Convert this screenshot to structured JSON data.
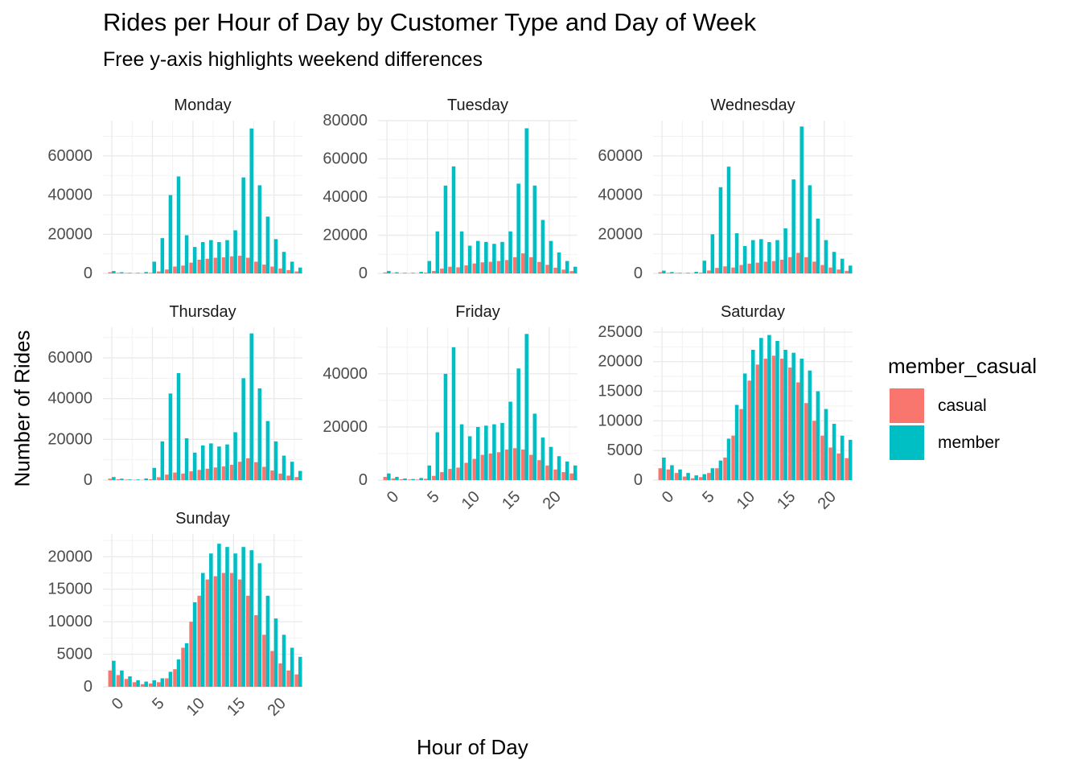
{
  "title": "Rides per Hour of Day by Customer Type and Day of Week",
  "subtitle": "Free y-axis highlights weekend differences",
  "legend": {
    "title": "member_casual",
    "items": [
      {
        "label": "casual",
        "color": "#F8766D"
      },
      {
        "label": "member",
        "color": "#00BFC4"
      }
    ]
  },
  "chart_data": {
    "type": "bar",
    "layout": "faceted grouped bar (dodged), free y-axis per facet",
    "xlabel": "Hour of Day",
    "ylabel": "Number of Rides",
    "x": [
      0,
      1,
      2,
      3,
      4,
      5,
      6,
      7,
      8,
      9,
      10,
      11,
      12,
      13,
      14,
      15,
      16,
      17,
      18,
      19,
      20,
      21,
      22,
      23
    ],
    "x_ticks": [
      0,
      5,
      10,
      15,
      20
    ],
    "grid": true,
    "legend_position": "right",
    "series_names": [
      "casual",
      "member"
    ],
    "facets": [
      {
        "name": "Monday",
        "ylim": [
          0,
          78000
        ],
        "y_ticks": [
          0,
          20000,
          40000,
          60000
        ],
        "series": [
          {
            "name": "casual",
            "values": [
              600,
              300,
              200,
              100,
              100,
              300,
              1000,
              2000,
              3500,
              4000,
              5500,
              7000,
              7500,
              8000,
              8200,
              8700,
              9000,
              8000,
              6000,
              4500,
              3500,
              2500,
              1700,
              1000
            ]
          },
          {
            "name": "member",
            "values": [
              1200,
              600,
              300,
              300,
              700,
              6000,
              18000,
              40000,
              49500,
              19500,
              13500,
              16000,
              17000,
              16000,
              17000,
              22000,
              49000,
              74000,
              45000,
              29000,
              17500,
              11000,
              6000,
              3000
            ]
          }
        ]
      },
      {
        "name": "Tuesday",
        "ylim": [
          0,
          80000
        ],
        "y_ticks": [
          0,
          20000,
          40000,
          60000,
          80000
        ],
        "series": [
          {
            "name": "casual",
            "values": [
              500,
              200,
              100,
              100,
              100,
              400,
              1300,
              2500,
              3500,
              3200,
              4200,
              5200,
              5800,
              6100,
              6500,
              7000,
              8500,
              10500,
              8500,
              6000,
              4500,
              3000,
              2000,
              1200
            ]
          },
          {
            "name": "member",
            "values": [
              1300,
              600,
              300,
              300,
              800,
              6500,
              22000,
              46000,
              56000,
              22000,
              14500,
              17000,
              16500,
              15500,
              16500,
              22000,
              47000,
              76000,
              46000,
              28000,
              17000,
              11000,
              6500,
              3500
            ]
          }
        ]
      },
      {
        "name": "Wednesday",
        "ylim": [
          0,
          78000
        ],
        "y_ticks": [
          0,
          20000,
          40000,
          60000
        ],
        "series": [
          {
            "name": "casual",
            "values": [
              600,
              300,
              200,
              100,
              100,
              400,
              1500,
              2800,
              3600,
              3000,
              4300,
              5000,
              5500,
              6000,
              6300,
              7000,
              8300,
              10500,
              8300,
              6000,
              4300,
              3000,
              2000,
              1300
            ]
          },
          {
            "name": "member",
            "values": [
              1400,
              700,
              300,
              300,
              800,
              6500,
              20000,
              44000,
              54500,
              20500,
              14000,
              17000,
              17500,
              16000,
              17000,
              23000,
              48000,
              75000,
              45000,
              28000,
              17000,
              11000,
              7500,
              4000
            ]
          }
        ]
      },
      {
        "name": "Thursday",
        "ylim": [
          0,
          75000
        ],
        "y_ticks": [
          0,
          20000,
          40000,
          60000
        ],
        "series": [
          {
            "name": "casual",
            "values": [
              700,
              400,
              200,
              100,
              100,
              400,
              1400,
              2700,
              3700,
              3200,
              4300,
              5000,
              5600,
              6200,
              6700,
              7500,
              9000,
              10700,
              8800,
              6500,
              4700,
              3200,
              2200,
              1500
            ]
          },
          {
            "name": "member",
            "values": [
              1500,
              700,
              300,
              300,
              800,
              6000,
              19000,
              42500,
              52500,
              20500,
              13500,
              17000,
              18000,
              16500,
              17500,
              23500,
              50000,
              72000,
              45000,
              29000,
              19000,
              12000,
              9000,
              4500
            ]
          }
        ]
      },
      {
        "name": "Friday",
        "ylim": [
          0,
          57500
        ],
        "y_ticks": [
          0,
          20000,
          40000
        ],
        "series": [
          {
            "name": "casual",
            "values": [
              1200,
              600,
              300,
              200,
              200,
              500,
              1600,
              3000,
              4200,
              4700,
              6500,
              8000,
              9500,
              10000,
              10500,
              11500,
              12000,
              11500,
              9500,
              7500,
              5500,
              4000,
              3000,
              2500
            ]
          },
          {
            "name": "member",
            "values": [
              2500,
              1200,
              600,
              400,
              800,
              5500,
              18000,
              40000,
              50000,
              21000,
              16500,
              20000,
              20500,
              21000,
              21500,
              29500,
              42000,
              55000,
              25000,
              16000,
              12500,
              9000,
              7000,
              5500
            ]
          }
        ]
      },
      {
        "name": "Saturday",
        "ylim": [
          0,
          25800
        ],
        "y_ticks": [
          0,
          5000,
          10000,
          15000,
          20000,
          25000
        ],
        "series": [
          {
            "name": "casual",
            "values": [
              2000,
              1800,
              1200,
              600,
              300,
              500,
              1200,
              2000,
              3800,
              7500,
              12000,
              16800,
              19500,
              20500,
              21000,
              20500,
              19000,
              16500,
              13000,
              10000,
              7500,
              5500,
              4500,
              3700
            ]
          },
          {
            "name": "member",
            "values": [
              3800,
              2500,
              1800,
              1200,
              800,
              1000,
              2000,
              3300,
              7000,
              12700,
              18000,
              22000,
              24000,
              24500,
              23500,
              22000,
              21500,
              20500,
              18500,
              15000,
              12000,
              9500,
              7500,
              6800
            ]
          }
        ]
      },
      {
        "name": "Sunday",
        "ylim": [
          0,
          23500
        ],
        "y_ticks": [
          0,
          5000,
          10000,
          15000,
          20000
        ],
        "series": [
          {
            "name": "casual",
            "values": [
              2500,
              1800,
              1200,
              700,
              400,
              500,
              700,
              1300,
              2700,
              6000,
              10000,
              14000,
              16500,
              17000,
              17500,
              17500,
              16500,
              14000,
              11000,
              8000,
              5500,
              3600,
              2500,
              1900
            ]
          },
          {
            "name": "member",
            "values": [
              4000,
              2500,
              1600,
              1000,
              800,
              1000,
              1300,
              2300,
              4200,
              6700,
              13000,
              17500,
              20500,
              22000,
              21500,
              20500,
              21500,
              21000,
              19000,
              14000,
              10500,
              8000,
              6000,
              4600
            ]
          }
        ]
      }
    ]
  }
}
